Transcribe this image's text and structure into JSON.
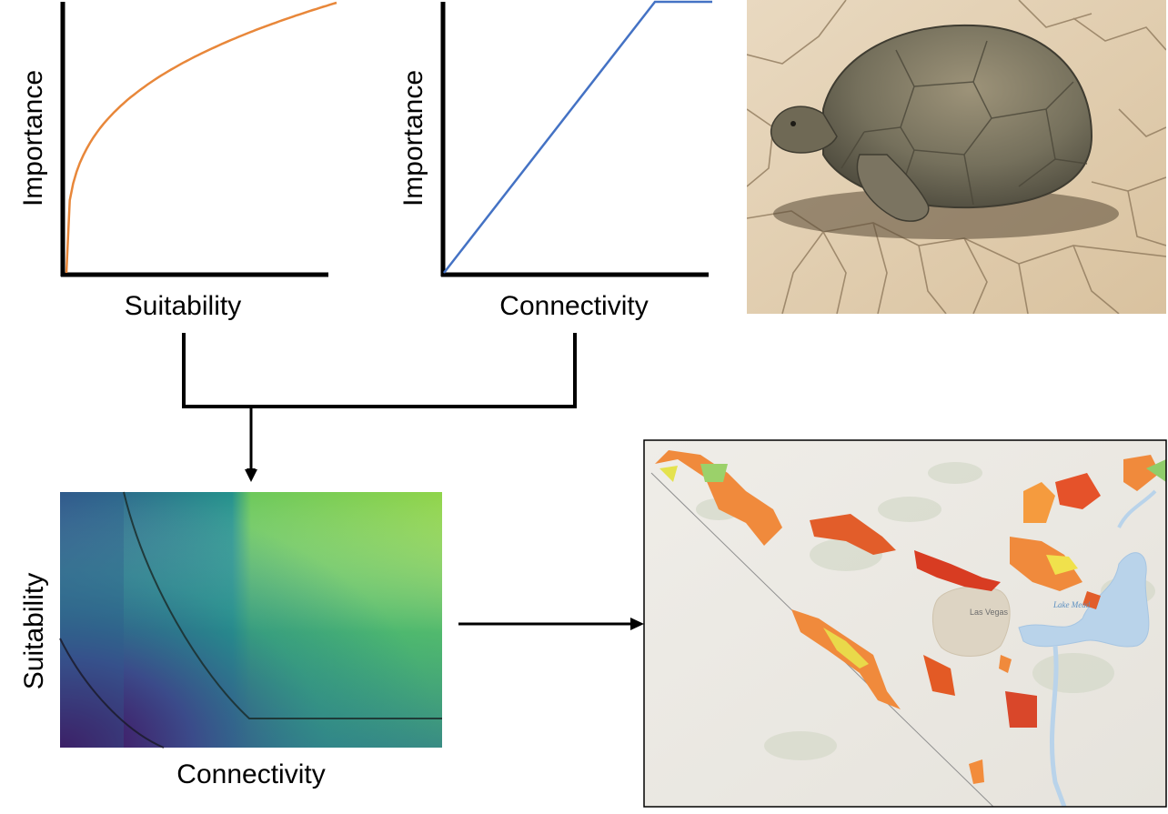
{
  "panels": {
    "suitability_plot": {
      "ylabel": "Importance",
      "xlabel": "Suitability",
      "curve_color": "#e8873a"
    },
    "connectivity_plot": {
      "ylabel": "Importance",
      "xlabel": "Connectivity",
      "curve_color": "#4472c4"
    },
    "combined_surface": {
      "ylabel": "Suitability",
      "xlabel": "Connectivity",
      "colormap": "viridis"
    },
    "photo": {
      "subject": "desert-tortoise"
    },
    "map": {
      "city_label": "Las Vegas",
      "lake_label": "Lake Mead"
    }
  }
}
